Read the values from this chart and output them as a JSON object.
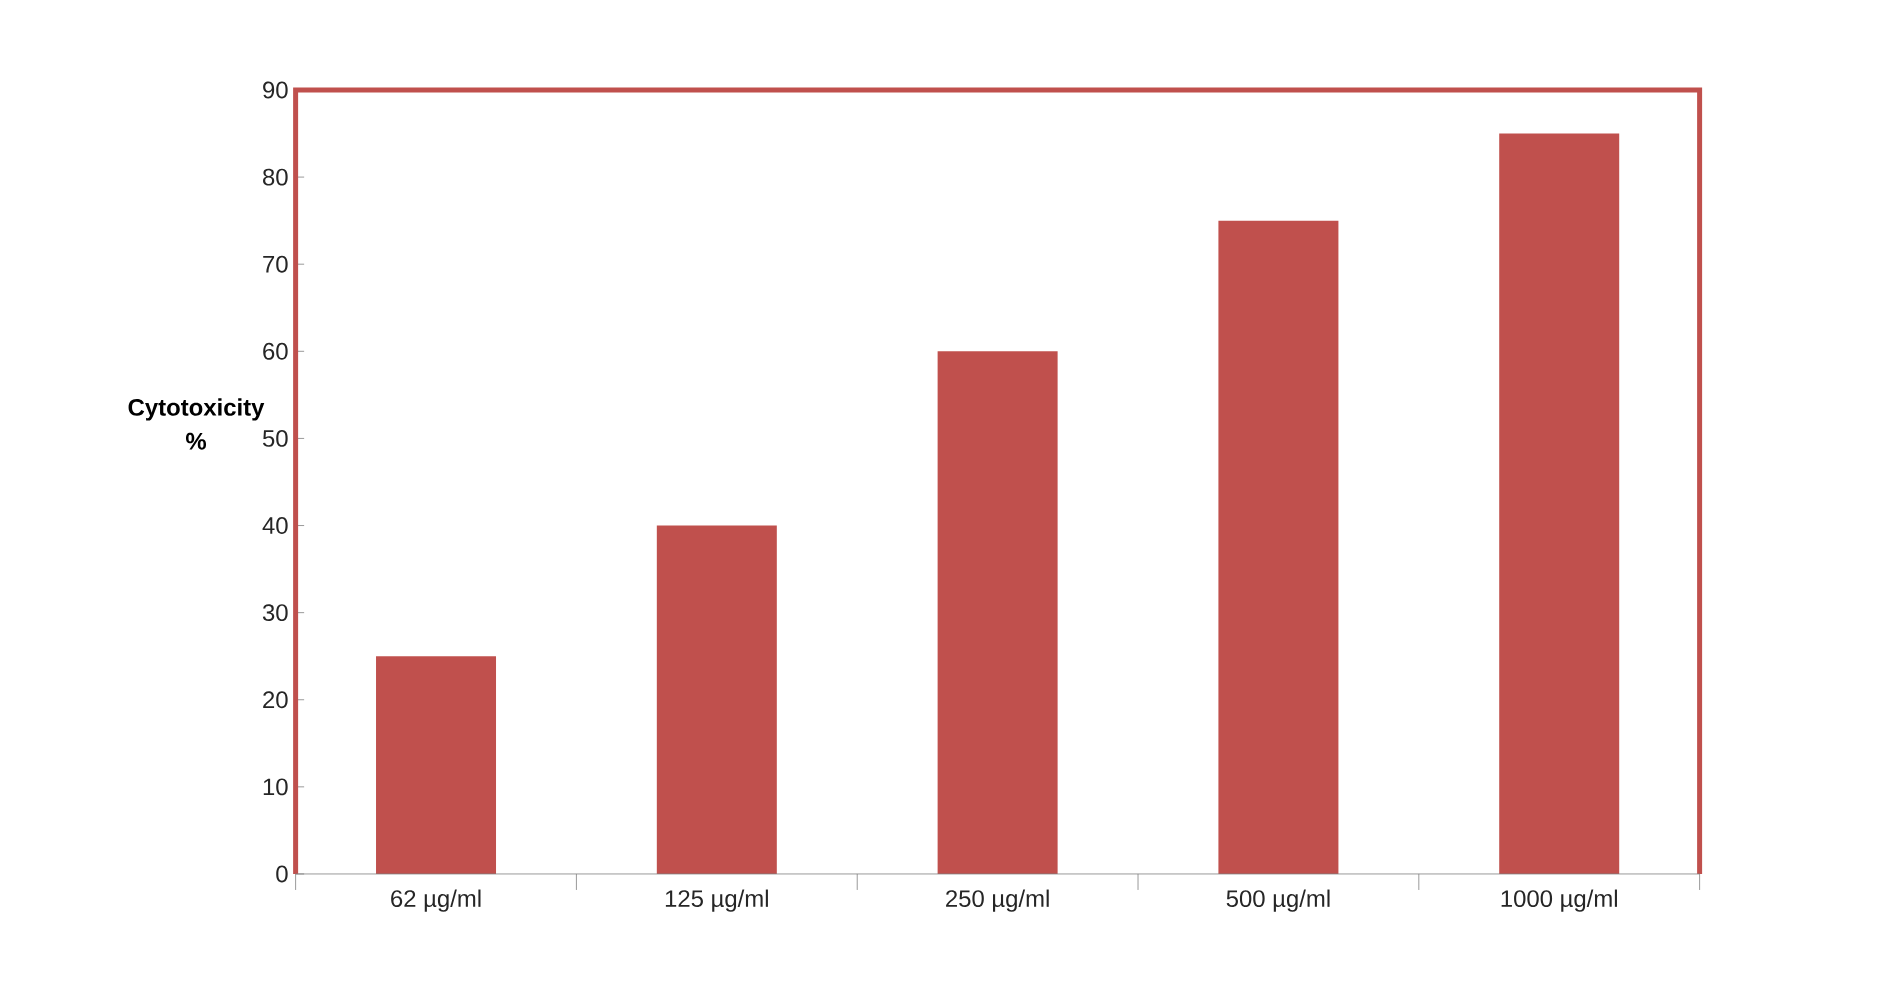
{
  "chart_data": {
    "type": "bar",
    "ylabel": "Cytotoxicity %",
    "categories": [
      "62 µg/ml",
      "125 µg/ml",
      "250 µg/ml",
      "500 µg/ml",
      "1000 µg/ml"
    ],
    "values": [
      25,
      40,
      60,
      75,
      85
    ],
    "color": "#c0504d",
    "ylim": [
      0,
      90
    ],
    "yticks": [
      0,
      10,
      20,
      30,
      40,
      50,
      60,
      70,
      80,
      90
    ],
    "grid": false
  }
}
